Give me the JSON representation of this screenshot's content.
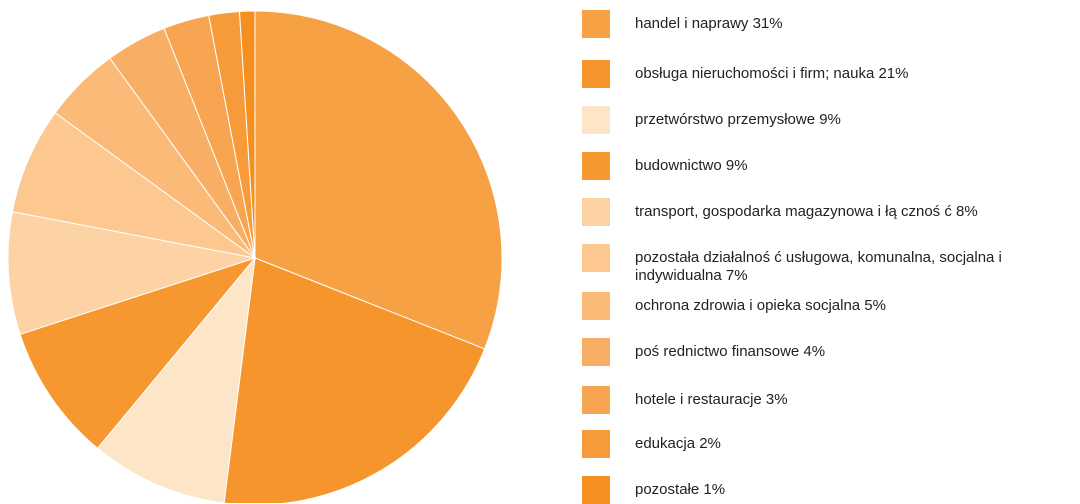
{
  "chart_data": {
    "type": "pie",
    "categories": [
      "handel i naprawy 31%",
      "obsługa nieruchomości i firm; nauka 21%",
      "przetwórstwo przemysłowe 9%",
      "budownictwo 9%",
      "transport, gospodarka magazynowa i łą cznoś ć 8%",
      "pozostała działalnoś ć usługowa, komunalna, socjalna i indywidualna 7%",
      "ochrona zdrowia i opieka socjalna 5%",
      "poś rednictwo finansowe 4%",
      "hotele i restauracje 3%",
      "edukacja 2%",
      "pozostałe 1%"
    ],
    "values": [
      31,
      21,
      9,
      9,
      8,
      7,
      5,
      4,
      3,
      2,
      1
    ],
    "colors": [
      "#f7a145",
      "#f6952c",
      "#fde5c8",
      "#f6982f",
      "#fdd3a5",
      "#fcc88f",
      "#fbba78",
      "#f9ae65",
      "#f8a551",
      "#f79b3a",
      "#f58f1f"
    ]
  }
}
